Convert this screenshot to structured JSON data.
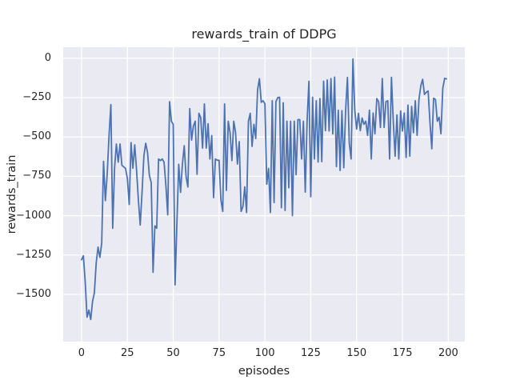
{
  "chart_data": {
    "type": "line",
    "title": "rewards_train of DDPG",
    "xlabel": "episodes",
    "ylabel": "rewards_train",
    "x_ticks": [
      0,
      25,
      50,
      75,
      100,
      125,
      150,
      175,
      200
    ],
    "y_ticks": [
      0,
      -250,
      -500,
      -750,
      -1000,
      -1250,
      -1500
    ],
    "xlim": [
      -10,
      209
    ],
    "ylim": [
      -1800,
      70
    ],
    "grid": true,
    "legend": false,
    "line_color": "#4c72b0",
    "axes_background": "#eaeaf2",
    "grid_color": "#ffffff",
    "series": [
      {
        "name": "rewards_train",
        "x_start": 0,
        "x_step": 1,
        "values": [
          -1280,
          -1255,
          -1420,
          -1645,
          -1600,
          -1660,
          -1545,
          -1490,
          -1300,
          -1200,
          -1265,
          -1175,
          -655,
          -905,
          -735,
          -490,
          -295,
          -1080,
          -700,
          -545,
          -660,
          -545,
          -680,
          -690,
          -700,
          -765,
          -929,
          -536,
          -699,
          -550,
          -710,
          -900,
          -1060,
          -850,
          -620,
          -540,
          -600,
          -745,
          -790,
          -1360,
          -1065,
          -1080,
          -640,
          -650,
          -640,
          -660,
          -810,
          -995,
          -276,
          -400,
          -420,
          -1440,
          -1050,
          -673,
          -852,
          -673,
          -556,
          -752,
          -818,
          -320,
          -520,
          -430,
          -400,
          -737,
          -350,
          -377,
          -571,
          -290,
          -571,
          -416,
          -640,
          -491,
          -886,
          -640,
          -648,
          -648,
          -900,
          -973,
          -290,
          -840,
          -400,
          -473,
          -650,
          -400,
          -473,
          -672,
          -530,
          -973,
          -942,
          -817,
          -980,
          -400,
          -350,
          -560,
          -420,
          -510,
          -200,
          -130,
          -280,
          -270,
          -290,
          -800,
          -700,
          -980,
          -270,
          -917,
          -276,
          -250,
          -248,
          -950,
          -283,
          -967,
          -400,
          -823,
          -400,
          -1000,
          -400,
          -740,
          -390,
          -390,
          -640,
          -400,
          -850,
          -400,
          -146,
          -880,
          -248,
          -640,
          -270,
          -660,
          -256,
          -657,
          -146,
          -460,
          -138,
          -462,
          -129,
          -481,
          -120,
          -688,
          -330,
          -713,
          -333,
          -696,
          -333,
          -122,
          -540,
          -640,
          -5,
          -330,
          -450,
          -350,
          -460,
          -380,
          -420,
          -400,
          -490,
          -330,
          -640,
          -348,
          -480,
          -256,
          -276,
          -440,
          -129,
          -440,
          -276,
          -270,
          -640,
          -121,
          -400,
          -622,
          -360,
          -640,
          -335,
          -462,
          -348,
          -630,
          -298,
          -622,
          -306,
          -473,
          -270,
          -490,
          -262,
          -175,
          -134,
          -230,
          -216,
          -208,
          -407,
          -575,
          -254,
          -262,
          -400,
          -375,
          -480,
          -190,
          -128,
          -131
        ]
      }
    ]
  }
}
